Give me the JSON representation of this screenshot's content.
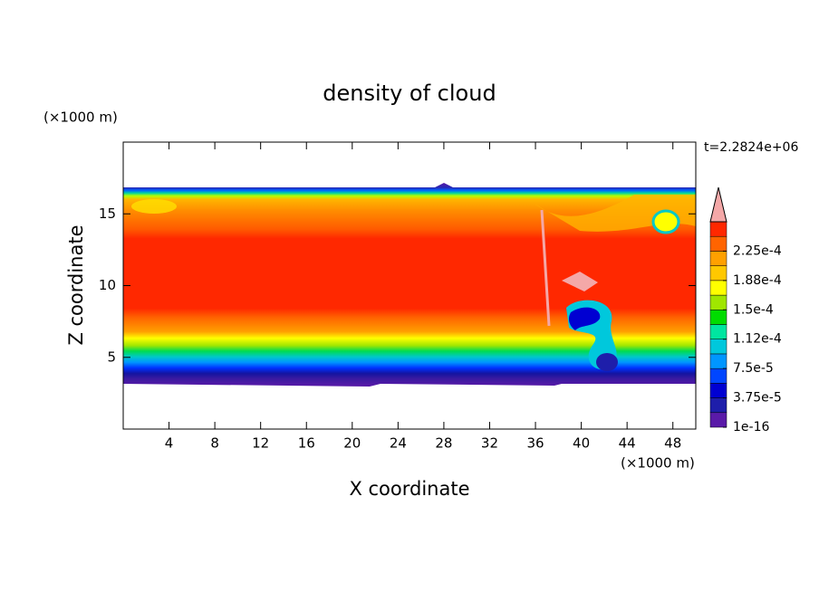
{
  "chart_data": {
    "type": "contour",
    "title": "density of cloud",
    "xlabel": "X coordinate",
    "ylabel": "Z coordinate",
    "x_unit": "(×1000 m)",
    "y_unit": "(×1000 m)",
    "annotation": "t=2.2824e+06",
    "xlim": [
      0,
      50
    ],
    "ylim": [
      0,
      20
    ],
    "xticks": [
      4,
      8,
      12,
      16,
      20,
      24,
      28,
      32,
      36,
      40,
      44,
      48
    ],
    "yticks": [
      5,
      10,
      15
    ],
    "colorbar": {
      "lim": [
        1e-16,
        0.0002625
      ],
      "colors": [
        "#5a1aa8",
        "#1e1eaa",
        "#0000d2",
        "#0046ff",
        "#0096ff",
        "#00c8dc",
        "#00e6a0",
        "#00dc00",
        "#a0e600",
        "#ffff00",
        "#ffc800",
        "#ffa000",
        "#ff6400",
        "#ff2800"
      ],
      "extend_color": "#f4a8a8",
      "ticks": [
        {
          "value": 1e-16,
          "label": "1e-16"
        },
        {
          "value": 3.75e-05,
          "label": "3.75e-5"
        },
        {
          "value": 7.5e-05,
          "label": "7.5e-5"
        },
        {
          "value": 0.0001125,
          "label": "1.12e-4"
        },
        {
          "value": 0.00015,
          "label": "1.5e-4"
        },
        {
          "value": 0.0001875,
          "label": "1.88e-4"
        },
        {
          "value": 0.000225,
          "label": "2.25e-4"
        }
      ]
    }
  }
}
